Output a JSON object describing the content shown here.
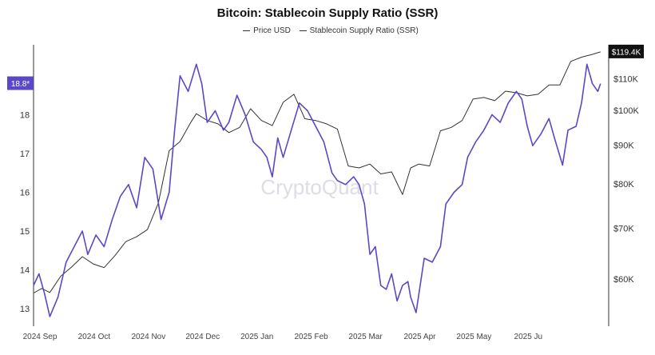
{
  "chart_data": {
    "type": "line",
    "title": "Bitcoin: Stablecoin Supply Ratio (SSR)",
    "watermark": "CryptoQuant",
    "legend": [
      "Price USD",
      "Stablecoin Supply Ratio (SSR)"
    ],
    "x_labels": [
      "2024 Sep",
      "2024 Oct",
      "2024 Nov",
      "2024 Dec",
      "2025 Jan",
      "2025 Feb",
      "2025 Mar",
      "2025 Apr",
      "2025 May",
      "2025 Ju"
    ],
    "x_range": [
      0,
      10.6
    ],
    "left_axis": {
      "ticks": [
        13,
        14,
        15,
        16,
        17,
        18,
        19
      ],
      "labels": [
        "13",
        "14",
        "15",
        "16",
        "17",
        "18",
        ""
      ],
      "ylim": [
        12.55,
        19.8
      ]
    },
    "right_axis": {
      "scale": "log",
      "ticks": [
        60,
        70,
        80,
        90,
        100,
        110
      ],
      "labels": [
        "$60K",
        "$70K",
        "$80K",
        "$90K",
        "$100K",
        "$110K"
      ],
      "ylim": [
        52,
        122
      ]
    },
    "current_ssr_label": "18.8*",
    "current_price_label": "$119.4K",
    "series": [
      {
        "name": "Price USD",
        "axis": "right",
        "color": "#333333",
        "x": [
          0,
          0.15,
          0.3,
          0.5,
          0.7,
          0.9,
          1.1,
          1.3,
          1.5,
          1.7,
          1.9,
          2.1,
          2.3,
          2.5,
          2.7,
          2.9,
          3.0,
          3.2,
          3.4,
          3.6,
          3.8,
          4.0,
          4.2,
          4.4,
          4.6,
          4.8,
          5.0,
          5.2,
          5.4,
          5.6,
          5.8,
          6.0,
          6.2,
          6.4,
          6.6,
          6.8,
          6.95,
          7.1,
          7.3,
          7.5,
          7.7,
          7.9,
          8.1,
          8.3,
          8.5,
          8.7,
          8.9,
          9.1,
          9.3,
          9.5,
          9.7,
          9.9,
          10.1,
          10.3,
          10.45
        ],
        "y": [
          57.5,
          58.3,
          57.6,
          60.5,
          62.2,
          64.2,
          62.8,
          62.1,
          64.4,
          67.2,
          68.2,
          69.7,
          75.5,
          88.5,
          91,
          96.5,
          99,
          97,
          96,
          93.5,
          95,
          100.5,
          97,
          95.5,
          102.5,
          105,
          97.5,
          97,
          96,
          94.5,
          84.5,
          84,
          85,
          82.5,
          83,
          77.5,
          84,
          85,
          84.5,
          94,
          95,
          97,
          103.5,
          104,
          103,
          106,
          105.5,
          104.5,
          105,
          108,
          108,
          116,
          117.5,
          118.5,
          119.4
        ]
      },
      {
        "name": "Stablecoin Supply Ratio (SSR)",
        "axis": "left",
        "color": "#5a48c8",
        "x": [
          0,
          0.1,
          0.2,
          0.3,
          0.45,
          0.6,
          0.75,
          0.9,
          1.0,
          1.15,
          1.3,
          1.45,
          1.6,
          1.75,
          1.9,
          2.05,
          2.2,
          2.35,
          2.5,
          2.6,
          2.7,
          2.85,
          3.0,
          3.1,
          3.2,
          3.35,
          3.5,
          3.6,
          3.75,
          3.9,
          4.05,
          4.2,
          4.3,
          4.4,
          4.5,
          4.6,
          4.75,
          4.9,
          5.05,
          5.2,
          5.35,
          5.5,
          5.6,
          5.75,
          5.9,
          6.0,
          6.1,
          6.2,
          6.3,
          6.4,
          6.5,
          6.6,
          6.7,
          6.8,
          6.9,
          6.95,
          7.05,
          7.2,
          7.35,
          7.5,
          7.6,
          7.75,
          7.9,
          8.0,
          8.15,
          8.3,
          8.45,
          8.6,
          8.75,
          8.9,
          9.0,
          9.1,
          9.2,
          9.35,
          9.5,
          9.6,
          9.75,
          9.85,
          10.0,
          10.1,
          10.2,
          10.3,
          10.4,
          10.45
        ],
        "y": [
          13.6,
          13.9,
          13.4,
          12.8,
          13.3,
          14.2,
          14.6,
          15.0,
          14.4,
          14.9,
          14.6,
          15.3,
          15.9,
          16.2,
          15.6,
          16.9,
          16.6,
          15.3,
          16.0,
          17.6,
          19.0,
          18.6,
          19.3,
          18.8,
          17.8,
          18.1,
          17.6,
          17.8,
          18.5,
          18.0,
          17.3,
          17.1,
          16.9,
          16.4,
          17.4,
          16.9,
          17.6,
          18.3,
          18.1,
          17.7,
          17.3,
          16.5,
          16.3,
          16.2,
          16.4,
          16.2,
          15.7,
          14.4,
          14.6,
          13.6,
          13.5,
          13.9,
          13.2,
          13.6,
          13.7,
          13.3,
          12.9,
          14.3,
          14.2,
          14.6,
          15.7,
          16.0,
          16.2,
          16.9,
          17.3,
          17.6,
          18.0,
          17.8,
          18.3,
          18.6,
          18.4,
          17.7,
          17.2,
          17.5,
          17.9,
          17.4,
          16.7,
          17.6,
          17.7,
          18.3,
          19.3,
          18.8,
          18.6,
          18.8
        ]
      }
    ]
  }
}
